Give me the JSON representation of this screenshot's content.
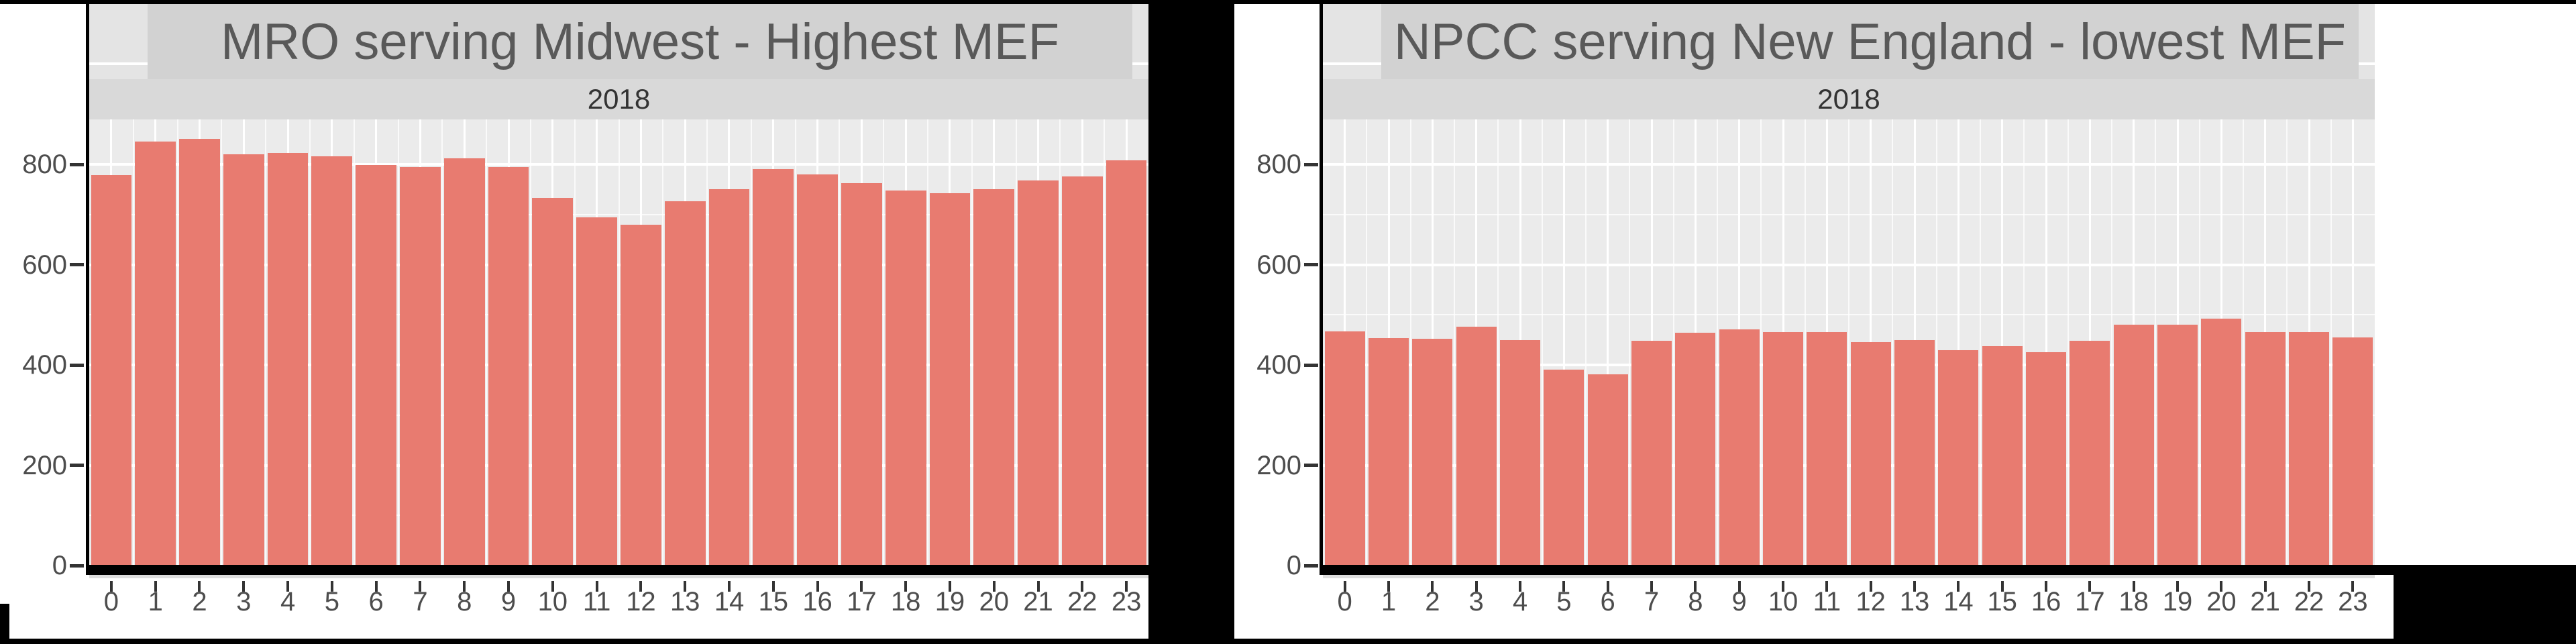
{
  "figure": {
    "description": "Two side-by-side hourly bar charts comparing mean emission factors by hour of day",
    "year_strip": "2018"
  },
  "colors": {
    "bar": "#E87B70",
    "panel_bg": "#EBEBEB",
    "grid_major": "#FFFFFF",
    "grid_minor": "rgba(255,255,255,0.72)",
    "title_box_bg": "#D2D2D2",
    "strip_bg": "#D9D9D9",
    "notch_bg": "#E4E4E4",
    "title_text": "#595959",
    "subtitle_text": "#333333",
    "axis_text": "#4D4D4D",
    "tick_mark": "#333333",
    "panel_underline": "#DEDEDE",
    "frame": "#000000"
  },
  "chart_data": [
    {
      "type": "bar",
      "title": "MRO serving Midwest - Highest MEF",
      "subtitle": "2018",
      "xlabel": "",
      "ylabel": "",
      "x": [
        0,
        1,
        2,
        3,
        4,
        5,
        6,
        7,
        8,
        9,
        10,
        11,
        12,
        13,
        14,
        15,
        16,
        17,
        18,
        19,
        20,
        21,
        22,
        23
      ],
      "values": [
        778,
        845,
        851,
        820,
        823,
        816,
        799,
        794,
        812,
        795,
        733,
        694,
        679,
        727,
        751,
        790,
        780,
        762,
        748,
        742,
        751,
        768,
        776,
        808
      ],
      "ylim": [
        0,
        890
      ],
      "yticks": [
        0,
        200,
        400,
        600,
        800
      ],
      "minor_gridlines": [
        100,
        300,
        500,
        700
      ],
      "grid": "on",
      "legend": "none"
    },
    {
      "type": "bar",
      "title": "NPCC serving New England - lowest MEF",
      "subtitle": "2018",
      "xlabel": "",
      "ylabel": "",
      "x": [
        0,
        1,
        2,
        3,
        4,
        5,
        6,
        7,
        8,
        9,
        10,
        11,
        12,
        13,
        14,
        15,
        16,
        17,
        18,
        19,
        20,
        21,
        22,
        23
      ],
      "values": [
        467,
        454,
        452,
        476,
        450,
        390,
        381,
        448,
        464,
        471,
        465,
        466,
        445,
        450,
        430,
        437,
        425,
        448,
        480,
        480,
        492,
        466,
        466,
        455
      ],
      "ylim": [
        0,
        890
      ],
      "yticks": [
        0,
        200,
        400,
        600,
        800
      ],
      "minor_gridlines": [
        100,
        300,
        500,
        700
      ],
      "grid": "on",
      "legend": "none"
    }
  ]
}
